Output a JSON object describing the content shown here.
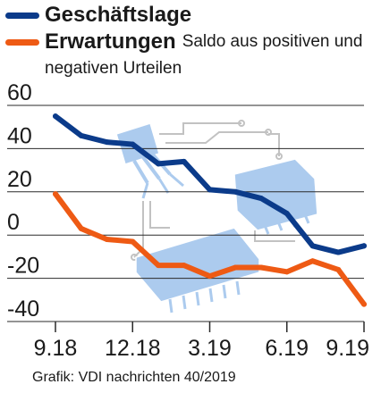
{
  "legend": {
    "note_line1": "Saldo aus positiven und",
    "note_line2": "negativen Urteilen"
  },
  "source": "Grafik: VDI nachrichten 40/2019",
  "colors": {
    "blue": "#0b3b8a",
    "orange": "#ee5a14",
    "illustration": "#a8c9ee",
    "grid": "#2a2a2a"
  },
  "chart_data": {
    "type": "line",
    "ylim": [
      -40,
      60
    ],
    "yticks": [
      "60",
      "40",
      "20",
      "0",
      "-20",
      "-40"
    ],
    "ytick_values": [
      60,
      40,
      20,
      0,
      -20,
      -40
    ],
    "xlim": [
      0,
      12
    ],
    "xticks": [
      "9.18",
      "12.18",
      "3.19",
      "6.19",
      "9.19"
    ],
    "xtick_values": [
      0,
      3,
      6,
      9,
      12
    ],
    "grid": true,
    "legend_position": "top-left",
    "series": [
      {
        "name": "Geschäftslage",
        "color": "#0b3b8a",
        "x": [
          0,
          1,
          2,
          3,
          4,
          5,
          6,
          7,
          8,
          9,
          10,
          11,
          12
        ],
        "values": [
          55,
          46,
          43,
          42,
          33,
          34,
          21,
          20,
          17,
          10,
          -5,
          -8,
          -5
        ]
      },
      {
        "name": "Erwartungen",
        "color": "#ee5a14",
        "x": [
          0,
          1,
          2,
          3,
          4,
          5,
          6,
          7,
          8,
          9,
          10,
          11,
          12
        ],
        "values": [
          19,
          3,
          -2,
          -3,
          -14,
          -14,
          -19,
          -15,
          -15,
          -17,
          -12,
          -16,
          -32
        ]
      }
    ]
  }
}
